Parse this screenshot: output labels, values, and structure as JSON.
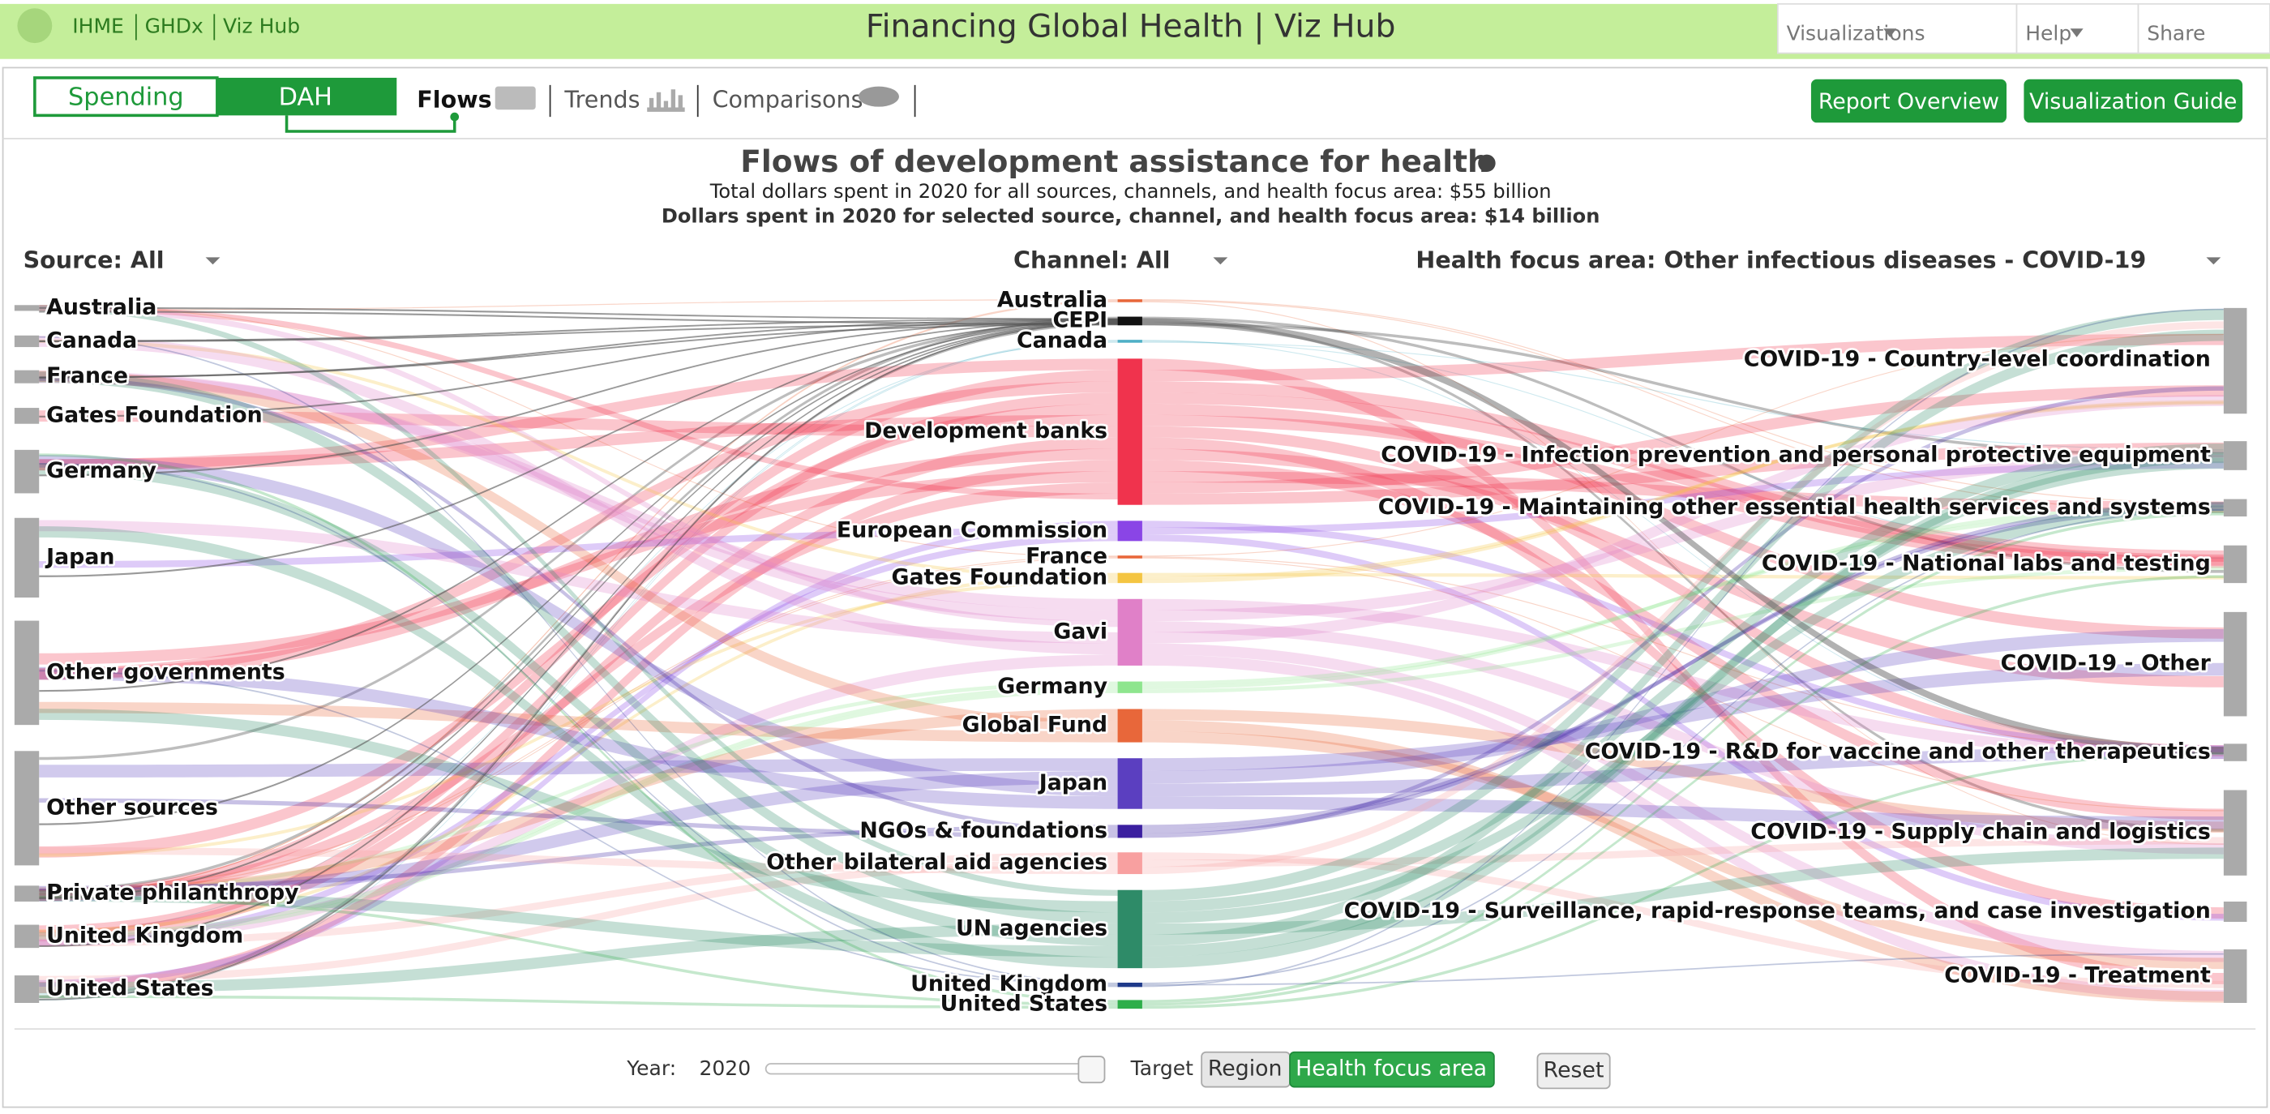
{
  "header": {
    "links": [
      "IHME",
      "GHDx",
      "Viz Hub"
    ],
    "title": "Financing Global Health | Viz Hub",
    "menu": [
      "Visualizations",
      "Help",
      "Share"
    ]
  },
  "toolbar": {
    "toggle": [
      "Spending",
      "DAH"
    ],
    "tabs": [
      "Flows",
      "Trends",
      "Comparisons"
    ],
    "buttons": [
      "Report Overview",
      "Visualization Guide"
    ]
  },
  "chart": {
    "title": "Flows of development assistance for health",
    "subtitle_total": "Total dollars spent in 2020 for all sources, channels, and health focus area: $55 billion",
    "subtitle_selected": "Dollars spent in 2020 for selected source, channel, and health focus area: $14 billion",
    "filters": [
      "Source: All",
      "Channel: All",
      "Health focus area: Other infectious diseases - COVID-19"
    ],
    "sources": [
      "Australia",
      "Canada",
      "France",
      "Gates Foundation",
      "Germany",
      "Japan",
      "Other governments",
      "Other sources",
      "Private philanthropy",
      "United Kingdom",
      "United States"
    ],
    "channels": [
      "Australia",
      "CEPI",
      "Canada",
      "Development banks",
      "European Commission",
      "France",
      "Gates Foundation",
      "Gavi",
      "Germany",
      "Global Fund",
      "Japan",
      "NGOs & foundations",
      "Other bilateral aid agencies",
      "UN agencies",
      "United Kingdom",
      "United States"
    ],
    "targets": [
      "COVID-19 - Country-level coordination",
      "COVID-19 - Infection prevention and personal protective equipment",
      "COVID-19 - Maintaining other essential health services and systems",
      "COVID-19 - National labs and testing",
      "COVID-19 - Other",
      "COVID-19 - R&D for vaccine and other therapeutics",
      "COVID-19 - Supply chain and logistics",
      "COVID-19 - Surveillance, rapid-response teams, and case investigation",
      "COVID-19 - Treatment"
    ]
  },
  "controls": {
    "year_label": "Year:",
    "year": 2020,
    "target_label": "Target",
    "target_options": [
      "Region",
      "Health focus area"
    ],
    "reset": "Reset"
  }
}
